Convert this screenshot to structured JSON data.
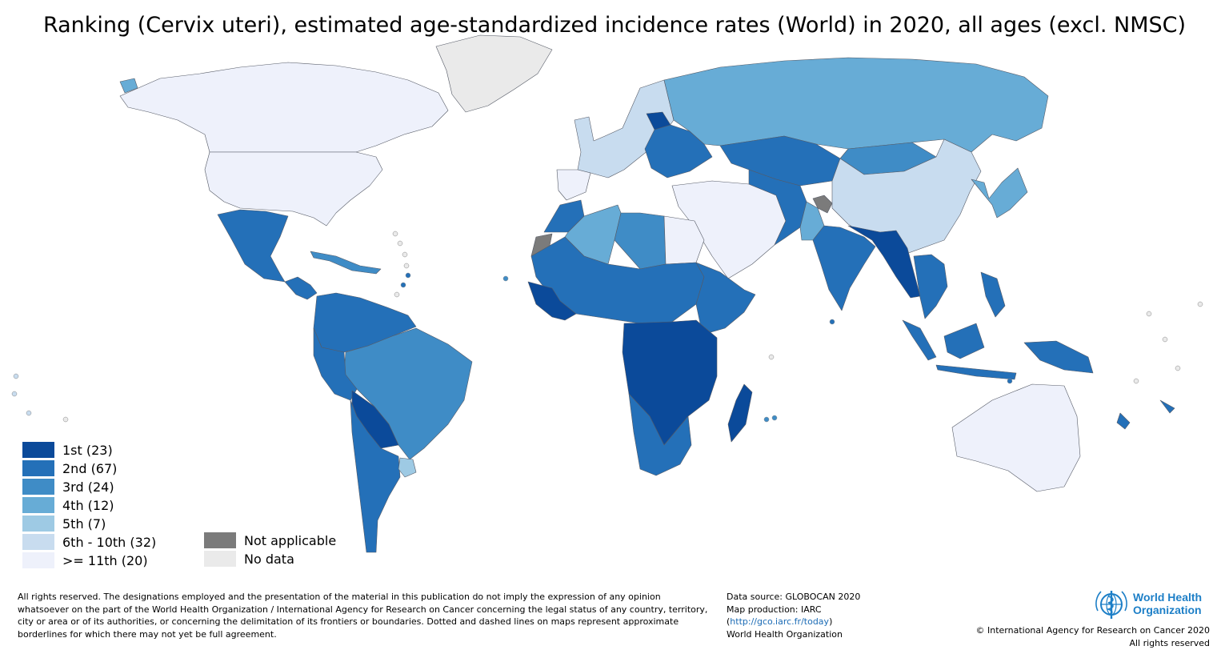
{
  "title": "Ranking (Cervix uteri), estimated age-standardized incidence rates (World) in 2020, all ages (excl. NMSC)",
  "colors": {
    "rank_1": "#0b4a9a",
    "rank_2": "#2470b8",
    "rank_3": "#3f8cc6",
    "rank_4": "#67acd6",
    "rank_5": "#9ecae4",
    "rank_6_10": "#c8dcef",
    "rank_11_plus": "#eef1fb",
    "not_applicable": "#7b7b7b",
    "no_data": "#eaeaea",
    "border": "#555a66",
    "ocean": "#ffffff"
  },
  "legend": {
    "ranks": [
      {
        "label": "1st (23)",
        "color": "#0b4a9a"
      },
      {
        "label": "2nd (67)",
        "color": "#2470b8"
      },
      {
        "label": "3rd (24)",
        "color": "#3f8cc6"
      },
      {
        "label": "4th (12)",
        "color": "#67acd6"
      },
      {
        "label": "5th (7)",
        "color": "#9ecae4"
      },
      {
        "label": "6th - 10th (32)",
        "color": "#c8dcef"
      },
      {
        "label": ">= 11th (20)",
        "color": "#eef1fb"
      }
    ],
    "extra": [
      {
        "label": "Not applicable",
        "color": "#7b7b7b"
      },
      {
        "label": "No data",
        "color": "#eaeaea"
      }
    ]
  },
  "regions": [
    {
      "name": "Canada & Alaska",
      "rank": ">= 11th"
    },
    {
      "name": "United States",
      "rank": ">= 11th"
    },
    {
      "name": "Greenland",
      "rank": "No data"
    },
    {
      "name": "Mexico",
      "rank": "2nd"
    },
    {
      "name": "Central America",
      "rank": "2nd"
    },
    {
      "name": "Caribbean",
      "rank": "3rd"
    },
    {
      "name": "Northern South America",
      "rank": "2nd"
    },
    {
      "name": "Brazil",
      "rank": "3rd"
    },
    {
      "name": "Peru & Andes",
      "rank": "2nd"
    },
    {
      "name": "Bolivia & Paraguay",
      "rank": "1st"
    },
    {
      "name": "Argentina & Chile",
      "rank": "2nd"
    },
    {
      "name": "Uruguay",
      "rank": "5th"
    },
    {
      "name": "Iceland",
      "rank": "4th"
    },
    {
      "name": "Western Europe",
      "rank": "6th - 10th"
    },
    {
      "name": "Iberia",
      "rank": ">= 11th"
    },
    {
      "name": "Eastern Europe",
      "rank": "2nd"
    },
    {
      "name": "Baltics",
      "rank": "1st"
    },
    {
      "name": "Russia",
      "rank": "4th"
    },
    {
      "name": "Central Asia",
      "rank": "2nd"
    },
    {
      "name": "Mongolia",
      "rank": "3rd"
    },
    {
      "name": "China",
      "rank": "6th - 10th"
    },
    {
      "name": "Japan & Korea",
      "rank": "4th"
    },
    {
      "name": "Middle East",
      "rank": ">= 11th"
    },
    {
      "name": "Afghanistan & Iran",
      "rank": "2nd"
    },
    {
      "name": "Pakistan",
      "rank": "4th"
    },
    {
      "name": "Kashmir",
      "rank": "Not applicable"
    },
    {
      "name": "India",
      "rank": "2nd"
    },
    {
      "name": "Nepal, Bangladesh & Myanmar",
      "rank": "1st"
    },
    {
      "name": "Mainland Southeast Asia",
      "rank": "2nd"
    },
    {
      "name": "Malaysia & Indonesia",
      "rank": "2nd"
    },
    {
      "name": "Philippines",
      "rank": "2nd"
    },
    {
      "name": "New Guinea",
      "rank": "2nd"
    },
    {
      "name": "Australia",
      "rank": ">= 11th"
    },
    {
      "name": "New Zealand",
      "rank": "2nd"
    },
    {
      "name": "North Africa (Morocco)",
      "rank": "2nd"
    },
    {
      "name": "Algeria & Tunisia",
      "rank": "4th"
    },
    {
      "name": "Libya",
      "rank": "3rd"
    },
    {
      "name": "Egypt",
      "rank": ">= 11th"
    },
    {
      "name": "Western Sahara",
      "rank": "Not applicable"
    },
    {
      "name": "Sahel",
      "rank": "2nd"
    },
    {
      "name": "West African coast",
      "rank": "1st"
    },
    {
      "name": "Horn of Africa",
      "rank": "2nd"
    },
    {
      "name": "Central & East Africa",
      "rank": "1st"
    },
    {
      "name": "Southern Africa",
      "rank": "2nd"
    },
    {
      "name": "Madagascar",
      "rank": "1st"
    },
    {
      "name": "Antarctic islands",
      "rank": "No data"
    }
  ],
  "disclaimer": "All rights reserved. The designations employed and the presentation of the material in this publication do not imply the expression of any opinion whatsoever on the part of the World Health Organization / International Agency for Research on Cancer concerning the legal status of any country, territory, city or area or of its authorities, or concerning the delimitation of its frontiers or boundaries. Dotted and dashed lines on maps represent approximate borderlines for which there may not yet be full agreement.",
  "source": {
    "data_source": "Data source: GLOBOCAN 2020",
    "map_production": "Map production: IARC",
    "link_open": "(",
    "link": "http://gco.iarc.fr/today",
    "link_close": ")",
    "organization": "World Health Organization"
  },
  "logo": {
    "line1": "World Health",
    "line2": "Organization"
  },
  "copyright": {
    "line1": "© International Agency for Research on Cancer 2020",
    "line2": "All rights reserved"
  }
}
